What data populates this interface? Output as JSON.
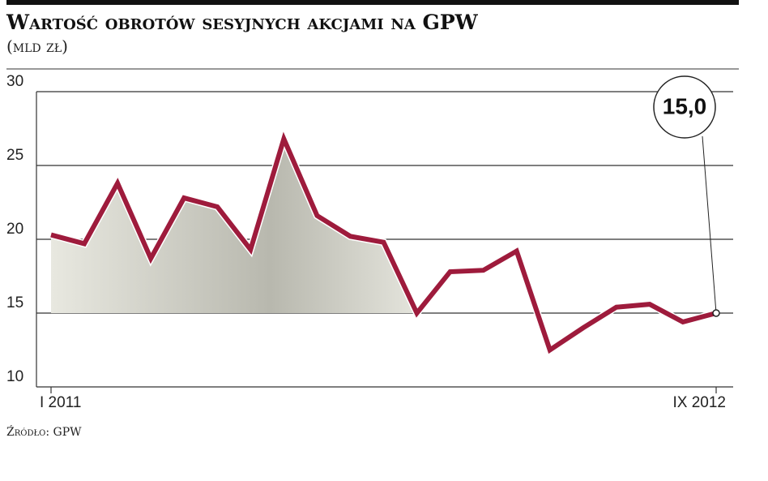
{
  "chart_data": {
    "type": "line",
    "title": "Wartość obrotów sesyjnych akcjami na GPW",
    "subtitle": "(mld zł)",
    "source": "Źródło: GPW",
    "categories": [
      "I 2011",
      null,
      null,
      null,
      null,
      null,
      null,
      null,
      null,
      null,
      null,
      null,
      null,
      null,
      null,
      null,
      null,
      null,
      null,
      null,
      "IX 2012"
    ],
    "series": [
      {
        "color": "#9e1b3c",
        "values": [
          20.3,
          19.7,
          23.8,
          18.7,
          22.8,
          22.2,
          19.3,
          26.8,
          21.6,
          20.2,
          19.8,
          15.0,
          17.8,
          17.9,
          19.2,
          12.5,
          14.0,
          15.4,
          15.6,
          14.4,
          15.0
        ],
        "value_labels": [
          null,
          null,
          null,
          null,
          null,
          null,
          null,
          null,
          null,
          null,
          null,
          null,
          null,
          null,
          null,
          null,
          null,
          null,
          null,
          null,
          "15,0"
        ]
      }
    ],
    "ylim": [
      10,
      30
    ],
    "yticks": [
      10,
      15,
      20,
      25,
      30
    ],
    "grid": true
  }
}
